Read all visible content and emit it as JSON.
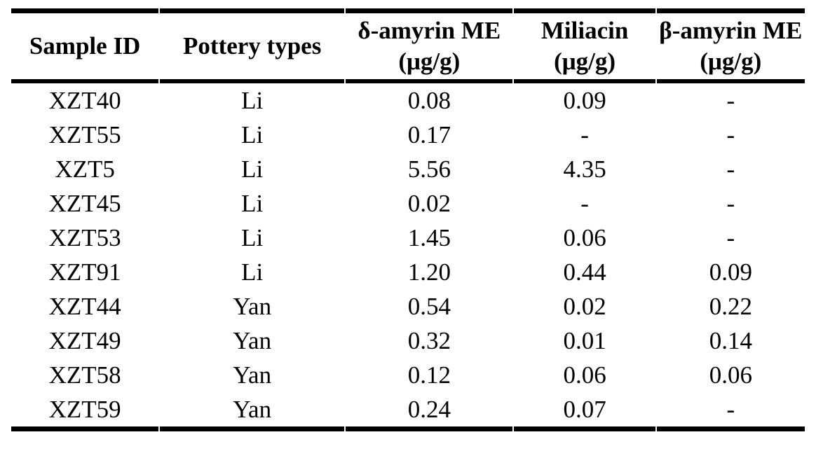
{
  "page": {
    "background_color": "#ffffff",
    "text_color": "#000000",
    "rule_color": "#000000"
  },
  "table": {
    "columns": [
      {
        "id": "sample_id",
        "title": "Sample ID",
        "unit": ""
      },
      {
        "id": "pottery_type",
        "title": "Pottery types",
        "unit": ""
      },
      {
        "id": "d_amyrin_me",
        "title": "δ-amyrin ME",
        "unit": "(μg/g)"
      },
      {
        "id": "miliacin",
        "title": "Miliacin",
        "unit": "(μg/g)"
      },
      {
        "id": "b_amyrin_me",
        "title": "β-amyrin ME",
        "unit": "(μg/g)"
      }
    ],
    "rows": [
      [
        "XZT40",
        "Li",
        "0.08",
        "0.09",
        "-"
      ],
      [
        "XZT55",
        "Li",
        "0.17",
        "-",
        "-"
      ],
      [
        "XZT5",
        "Li",
        "5.56",
        "4.35",
        "-"
      ],
      [
        "XZT45",
        "Li",
        "0.02",
        "-",
        "-"
      ],
      [
        "XZT53",
        "Li",
        "1.45",
        "0.06",
        "-"
      ],
      [
        "XZT91",
        "Li",
        "1.20",
        "0.44",
        "0.09"
      ],
      [
        "XZT44",
        "Yan",
        "0.54",
        "0.02",
        "0.22"
      ],
      [
        "XZT49",
        "Yan",
        "0.32",
        "0.01",
        "0.14"
      ],
      [
        "XZT58",
        "Yan",
        "0.12",
        "0.06",
        "0.06"
      ],
      [
        "XZT59",
        "Yan",
        "0.24",
        "0.07",
        "-"
      ]
    ],
    "missing_value_marker": "-"
  },
  "chart_data": {
    "type": "table",
    "title": "",
    "columns": [
      "Sample ID",
      "Pottery types",
      "δ-amyrin ME (μg/g)",
      "Miliacin (μg/g)",
      "β-amyrin ME (μg/g)"
    ],
    "rows": [
      [
        "XZT40",
        "Li",
        "0.08",
        "0.09",
        "-"
      ],
      [
        "XZT55",
        "Li",
        "0.17",
        "-",
        "-"
      ],
      [
        "XZT5",
        "Li",
        "5.56",
        "4.35",
        "-"
      ],
      [
        "XZT45",
        "Li",
        "0.02",
        "-",
        "-"
      ],
      [
        "XZT53",
        "Li",
        "1.45",
        "0.06",
        "-"
      ],
      [
        "XZT91",
        "Li",
        "1.20",
        "0.44",
        "0.09"
      ],
      [
        "XZT44",
        "Yan",
        "0.54",
        "0.02",
        "0.22"
      ],
      [
        "XZT49",
        "Yan",
        "0.32",
        "0.01",
        "0.14"
      ],
      [
        "XZT58",
        "Yan",
        "0.12",
        "0.06",
        "0.06"
      ],
      [
        "XZT59",
        "Yan",
        "0.24",
        "0.07",
        "-"
      ]
    ]
  }
}
